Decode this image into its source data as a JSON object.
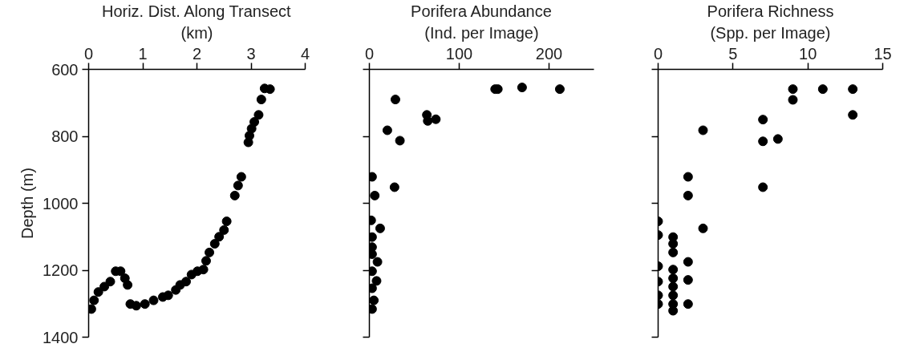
{
  "chart_data": [
    {
      "type": "scatter",
      "xlabel": "Horiz. Dist. Along Transect\n(km)",
      "ylabel": "Depth (m)",
      "marker": "circle",
      "xlim": [
        0,
        4
      ],
      "xticks": [
        0,
        1,
        2,
        3,
        4
      ],
      "ylim": [
        1400,
        600
      ],
      "yticks": [
        600,
        800,
        1000,
        1200,
        1400
      ],
      "series": [
        {
          "color": "#000000",
          "x": [
            3.35,
            3.25,
            3.19,
            3.14,
            3.06,
            3.01,
            2.97,
            2.95,
            2.82,
            2.76,
            2.7,
            2.55,
            2.5,
            2.41,
            2.33,
            2.23,
            2.17,
            2.12,
            2.01,
            1.9,
            1.8,
            1.69,
            1.61,
            1.47,
            1.37,
            1.2,
            1.04,
            0.88,
            0.77,
            0.72,
            0.67,
            0.59,
            0.5,
            0.4,
            0.29,
            0.18,
            0.1,
            0.05
          ],
          "values": [
            659,
            657,
            690,
            736,
            757,
            777,
            798,
            818,
            921,
            947,
            977,
            1054,
            1080,
            1100,
            1121,
            1147,
            1172,
            1198,
            1203,
            1213,
            1234,
            1244,
            1259,
            1275,
            1280,
            1290,
            1301,
            1306,
            1301,
            1244,
            1224,
            1203,
            1203,
            1234,
            1249,
            1265,
            1290,
            1316
          ]
        }
      ]
    },
    {
      "type": "scatter",
      "xlabel": "Porifera Abundance\n(Ind. per Image)",
      "marker": "circle",
      "tick_labels": "x",
      "xlim": [
        0,
        250
      ],
      "xticks": [
        0,
        100,
        200
      ],
      "ylim": [
        1400,
        600
      ],
      "yticks": [
        600,
        800,
        1000,
        1200,
        1400
      ],
      "series": [
        {
          "color": "#000000",
          "x": [
            140,
            143,
            170,
            212,
            29,
            64,
            65,
            74,
            20,
            34,
            3,
            28,
            6,
            2,
            12,
            3,
            3,
            3,
            9,
            3,
            8,
            3,
            5,
            3
          ],
          "values": [
            659,
            659,
            654,
            659,
            690,
            736,
            754,
            749,
            782,
            813,
            921,
            952,
            977,
            1051,
            1075,
            1101,
            1131,
            1152,
            1175,
            1203,
            1232,
            1254,
            1290,
            1316
          ]
        }
      ]
    },
    {
      "type": "scatter",
      "xlabel": "Porifera Richness\n(Spp. per Image)",
      "marker": "circle",
      "tick_labels": "x",
      "xlim": [
        0,
        15
      ],
      "xticks": [
        0,
        5,
        10,
        15
      ],
      "ylim": [
        1400,
        600
      ],
      "yticks": [
        600,
        800,
        1000,
        1200,
        1400
      ],
      "series": [
        {
          "color": "#000000",
          "x": [
            9,
            9,
            11,
            13,
            13,
            7,
            7,
            8,
            3,
            2,
            2,
            7,
            3,
            0,
            0,
            1,
            1,
            1,
            2,
            0,
            1,
            1,
            0,
            2,
            1,
            0,
            1,
            0,
            1,
            2,
            1
          ],
          "values": [
            659,
            691,
            659,
            659,
            736,
            750,
            815,
            808,
            782,
            921,
            977,
            952,
            1075,
            1054,
            1095,
            1101,
            1121,
            1147,
            1175,
            1188,
            1198,
            1224,
            1234,
            1229,
            1249,
            1275,
            1275,
            1301,
            1301,
            1301,
            1321
          ]
        }
      ]
    }
  ]
}
